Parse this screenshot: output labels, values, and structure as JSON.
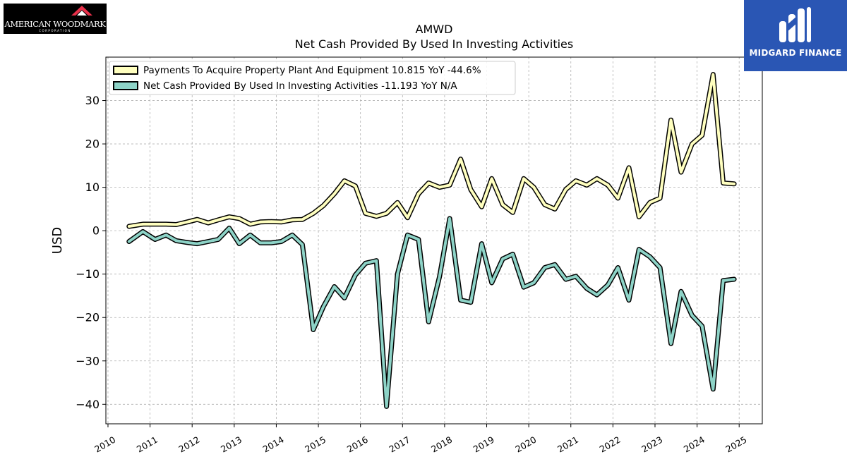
{
  "header": {
    "company_logo_text": "AMERICAN WOODMARK",
    "company_logo_subtext": "CORPORATION",
    "brand_name": "MIDGARD FINANCE"
  },
  "colors": {
    "payments_series": "#ffffbf",
    "net_cash_series": "#8dd3c7",
    "outline": "#000000",
    "grid": "#b0b0b0",
    "brand_background": "#2a56b4"
  },
  "chart_data": {
    "type": "line",
    "title": "AMWD",
    "subtitle": "Net Cash Provided By Used In Investing Activities",
    "xlabel": "",
    "ylabel": "USD",
    "xlim": [
      2009.95,
      2025.55
    ],
    "ylim": [
      -44.5,
      40
    ],
    "x_ticks": [
      "2010",
      "2011",
      "2012",
      "2013",
      "2014",
      "2015",
      "2016",
      "2017",
      "2018",
      "2019",
      "2020",
      "2021",
      "2022",
      "2023",
      "2024",
      "2025"
    ],
    "y_ticks": [
      "30",
      "20",
      "10",
      "0",
      "−10",
      "−20",
      "−30",
      "−40"
    ],
    "y_tick_values": [
      30,
      20,
      10,
      0,
      -10,
      -20,
      -30,
      -40
    ],
    "grid": true,
    "legend_position": "top-left",
    "legend": [
      "Payments To Acquire Property Plant And Equipment  10.815 YoY -44.6%",
      "Net Cash Provided By Used In Investing Activities  -11.193 YoY N/A"
    ],
    "x": [
      2010.5,
      2010.83,
      2011.12,
      2011.38,
      2011.62,
      2011.88,
      2012.12,
      2012.38,
      2012.62,
      2012.88,
      2013.12,
      2013.38,
      2013.62,
      2013.88,
      2014.12,
      2014.38,
      2014.62,
      2014.88,
      2015.12,
      2015.38,
      2015.62,
      2015.88,
      2016.12,
      2016.38,
      2016.62,
      2016.88,
      2017.12,
      2017.38,
      2017.62,
      2017.88,
      2018.12,
      2018.38,
      2018.62,
      2018.88,
      2019.12,
      2019.38,
      2019.62,
      2019.88,
      2020.12,
      2020.38,
      2020.62,
      2020.88,
      2021.12,
      2021.38,
      2021.62,
      2021.88,
      2022.12,
      2022.38,
      2022.62,
      2022.88,
      2023.12,
      2023.38,
      2023.62,
      2023.88,
      2024.12,
      2024.38,
      2024.62,
      2024.88
    ],
    "series": [
      {
        "name": "Payments To Acquire Property Plant And Equipment",
        "color": "#ffffbf",
        "values": [
          1.0,
          1.5,
          1.5,
          1.5,
          1.4,
          2.0,
          2.6,
          1.8,
          2.5,
          3.2,
          2.8,
          1.5,
          2.0,
          2.1,
          2.0,
          2.5,
          2.6,
          4.0,
          5.8,
          8.5,
          11.5,
          10.3,
          4.0,
          3.3,
          4.0,
          6.5,
          3.0,
          8.5,
          11.0,
          10.0,
          10.5,
          16.5,
          9.5,
          5.5,
          12.0,
          6.0,
          4.2,
          12.0,
          10.0,
          6.0,
          5.0,
          9.5,
          11.5,
          10.5,
          12.0,
          10.5,
          7.5,
          14.5,
          3.2,
          6.5,
          7.5,
          25.5,
          13.5,
          20.0,
          22.0,
          36.0,
          11.0,
          10.8
        ]
      },
      {
        "name": "Net Cash Provided By Used In Investing Activities",
        "color": "#8dd3c7",
        "values": [
          -2.5,
          -0.2,
          -2.0,
          -1.0,
          -2.3,
          -2.7,
          -3.0,
          -2.5,
          -2.0,
          0.6,
          -3.0,
          -1.0,
          -2.8,
          -2.8,
          -2.5,
          -1.0,
          -3.2,
          -22.8,
          -17.5,
          -12.9,
          -15.5,
          -10.2,
          -7.5,
          -6.9,
          -40.5,
          -10.0,
          -1.0,
          -2.0,
          -21.0,
          -10.5,
          2.8,
          -16.0,
          -16.5,
          -3.0,
          -12.0,
          -6.5,
          -5.4,
          -13.0,
          -12.0,
          -8.5,
          -7.8,
          -11.2,
          -10.5,
          -13.3,
          -14.8,
          -12.5,
          -8.5,
          -16.0,
          -4.3,
          -6.0,
          -8.5,
          -26.0,
          -14.0,
          -19.5,
          -22.0,
          -36.5,
          -11.5,
          -11.193
        ]
      }
    ]
  }
}
